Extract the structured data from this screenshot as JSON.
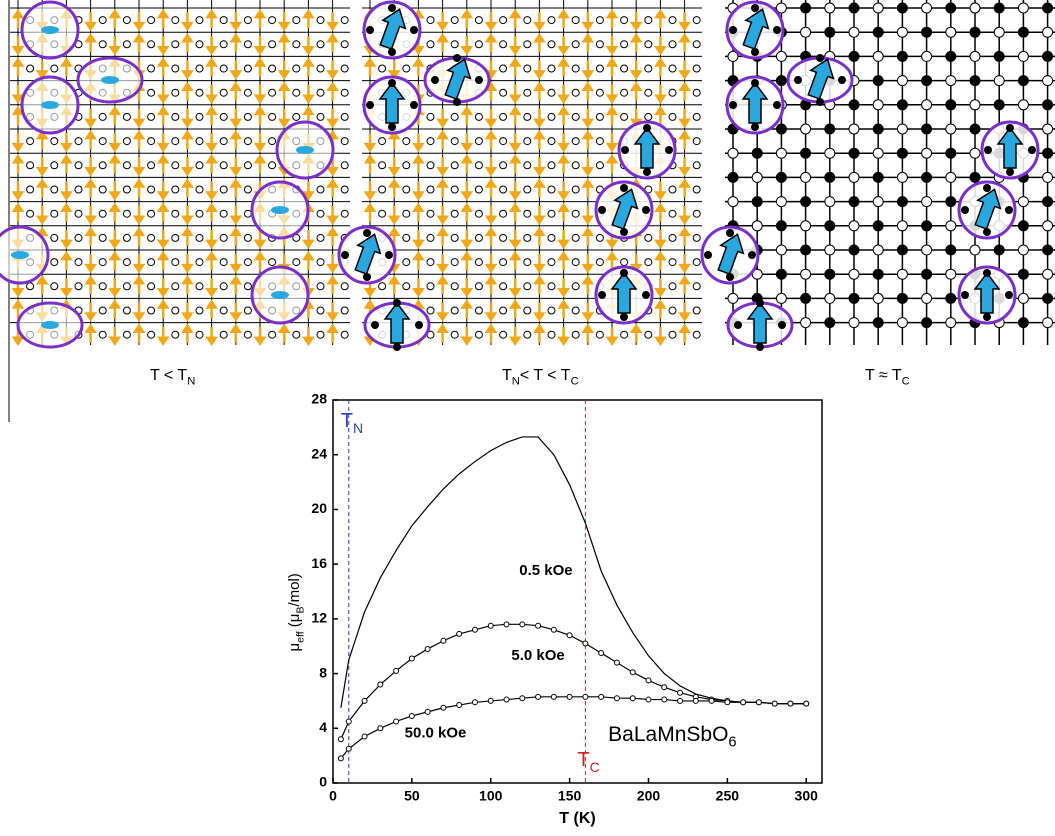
{
  "panels": [
    {
      "label": [
        "T < T",
        "N"
      ]
    },
    {
      "label": [
        "T",
        "N",
        "< T < T",
        "C"
      ]
    },
    {
      "label": [
        "T ≈ T",
        "C"
      ]
    }
  ],
  "chart_data": {
    "type": "line",
    "xlabel": "T (K)",
    "ylabel": [
      "μ",
      "eff",
      " (μ",
      "B",
      "/mol)"
    ],
    "xlim": [
      0,
      310
    ],
    "ylim": [
      0,
      28
    ],
    "xticks": [
      0,
      50,
      100,
      150,
      200,
      250,
      300
    ],
    "yticks": [
      0,
      4,
      8,
      12,
      16,
      20,
      24,
      28
    ],
    "x": [
      5,
      10,
      20,
      30,
      40,
      50,
      60,
      70,
      80,
      90,
      100,
      110,
      120,
      130,
      140,
      150,
      160,
      170,
      180,
      190,
      200,
      210,
      220,
      230,
      240,
      250,
      260,
      270,
      280,
      290,
      300
    ],
    "series": [
      {
        "name": "0.5 kOe",
        "color": "#000000",
        "marker": "none",
        "label_at": [
          135,
          15.5
        ],
        "values": [
          5.5,
          9,
          12.5,
          15,
          17,
          18.8,
          20.2,
          21.5,
          22.6,
          23.5,
          24.3,
          24.9,
          25.3,
          25.3,
          24,
          21.8,
          19,
          15.5,
          13,
          11,
          9.3,
          8,
          7.1,
          6.5,
          6.2,
          6,
          5.9,
          5.9,
          5.8,
          5.8,
          5.8
        ]
      },
      {
        "name": "5.0 kOe",
        "color": "#000000",
        "marker": "circle",
        "label_at": [
          130,
          9.3
        ],
        "values": [
          3.2,
          4.5,
          6,
          7.2,
          8.2,
          9.1,
          9.8,
          10.4,
          10.9,
          11.2,
          11.5,
          11.6,
          11.6,
          11.5,
          11.2,
          10.8,
          10.2,
          9.5,
          8.8,
          8.1,
          7.5,
          7,
          6.6,
          6.3,
          6.1,
          6,
          5.9,
          5.9,
          5.8,
          5.8,
          5.8
        ]
      },
      {
        "name": "50.0 kOe",
        "color": "#000000",
        "marker": "circle",
        "label_at": [
          65,
          3.6
        ],
        "values": [
          1.8,
          2.5,
          3.4,
          4,
          4.5,
          4.9,
          5.2,
          5.5,
          5.7,
          5.9,
          6,
          6.1,
          6.2,
          6.3,
          6.3,
          6.3,
          6.3,
          6.3,
          6.2,
          6.2,
          6.1,
          6.1,
          6,
          6,
          6,
          5.9,
          5.9,
          5.9,
          5.8,
          5.8,
          5.8
        ]
      }
    ],
    "vlines": [
      {
        "x": 10,
        "label": [
          "T",
          "N"
        ],
        "color": "#2d3fbf",
        "label_y": 26.4
      },
      {
        "x": 160,
        "label": [
          "T",
          "C"
        ],
        "color": "#d02020",
        "label_y": 1.6
      }
    ],
    "compound": [
      "BaLaMnSbO",
      "6"
    ],
    "compound_at": [
      222,
      3.5
    ]
  }
}
